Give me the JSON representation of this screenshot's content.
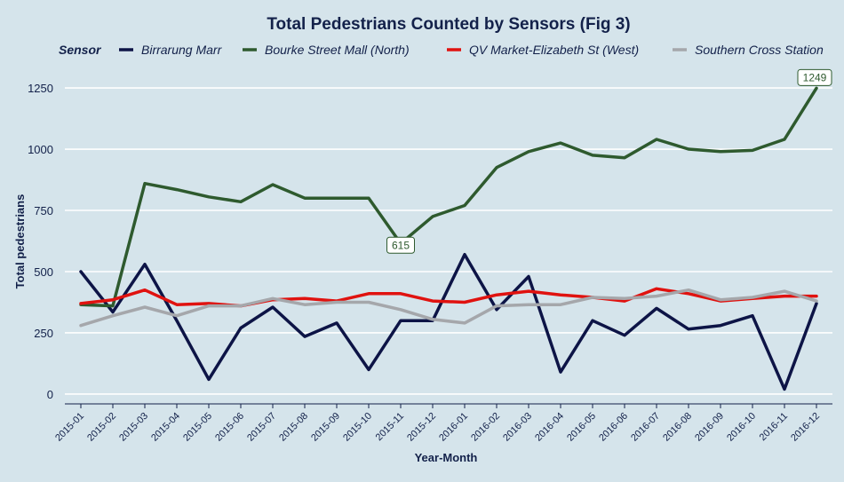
{
  "chart_data": {
    "type": "line",
    "title": "Total Pedestrians Counted by Sensors (Fig 3)",
    "xlabel": "Year-Month",
    "ylabel": "Total pedestrians",
    "legend_title": "Sensor",
    "legend_position": "top",
    "ylim": [
      -40,
      1290
    ],
    "yticks": [
      0,
      250,
      500,
      750,
      1000,
      1250
    ],
    "grid": true,
    "categories": [
      "2015-01",
      "2015-02",
      "2015-03",
      "2015-04",
      "2015-05",
      "2015-06",
      "2015-07",
      "2015-08",
      "2015-09",
      "2015-10",
      "2015-11",
      "2015-12",
      "2016-01",
      "2016-02",
      "2016-03",
      "2016-04",
      "2016-05",
      "2016-06",
      "2016-07",
      "2016-08",
      "2016-09",
      "2016-10",
      "2016-11",
      "2016-12"
    ],
    "series": [
      {
        "name": "Birrarung Marr",
        "color": "#0d1446",
        "values": [
          500,
          335,
          530,
          300,
          60,
          270,
          355,
          235,
          290,
          100,
          300,
          300,
          570,
          345,
          480,
          90,
          300,
          240,
          350,
          265,
          280,
          320,
          20,
          370
        ]
      },
      {
        "name": "Bourke Street Mall (North)",
        "color": "#2e5a2e",
        "values": [
          365,
          360,
          860,
          835,
          805,
          785,
          855,
          800,
          800,
          800,
          615,
          725,
          770,
          925,
          990,
          1025,
          975,
          965,
          1040,
          1000,
          990,
          995,
          1040,
          1249
        ]
      },
      {
        "name": "QV Market-Elizabeth St (West)",
        "color": "#e0120f",
        "values": [
          370,
          385,
          425,
          365,
          370,
          360,
          385,
          390,
          380,
          410,
          410,
          380,
          375,
          405,
          420,
          405,
          395,
          380,
          430,
          410,
          380,
          390,
          400,
          400
        ]
      },
      {
        "name": "Southern Cross Station",
        "color": "#a5a7ab",
        "values": [
          280,
          320,
          355,
          320,
          360,
          360,
          390,
          365,
          375,
          375,
          345,
          305,
          290,
          360,
          365,
          365,
          395,
          390,
          400,
          425,
          385,
          395,
          420,
          380
        ]
      }
    ],
    "annotations": [
      {
        "series": 1,
        "index": 10,
        "text": "615"
      },
      {
        "series": 1,
        "index": 23,
        "text": "1249"
      }
    ]
  }
}
